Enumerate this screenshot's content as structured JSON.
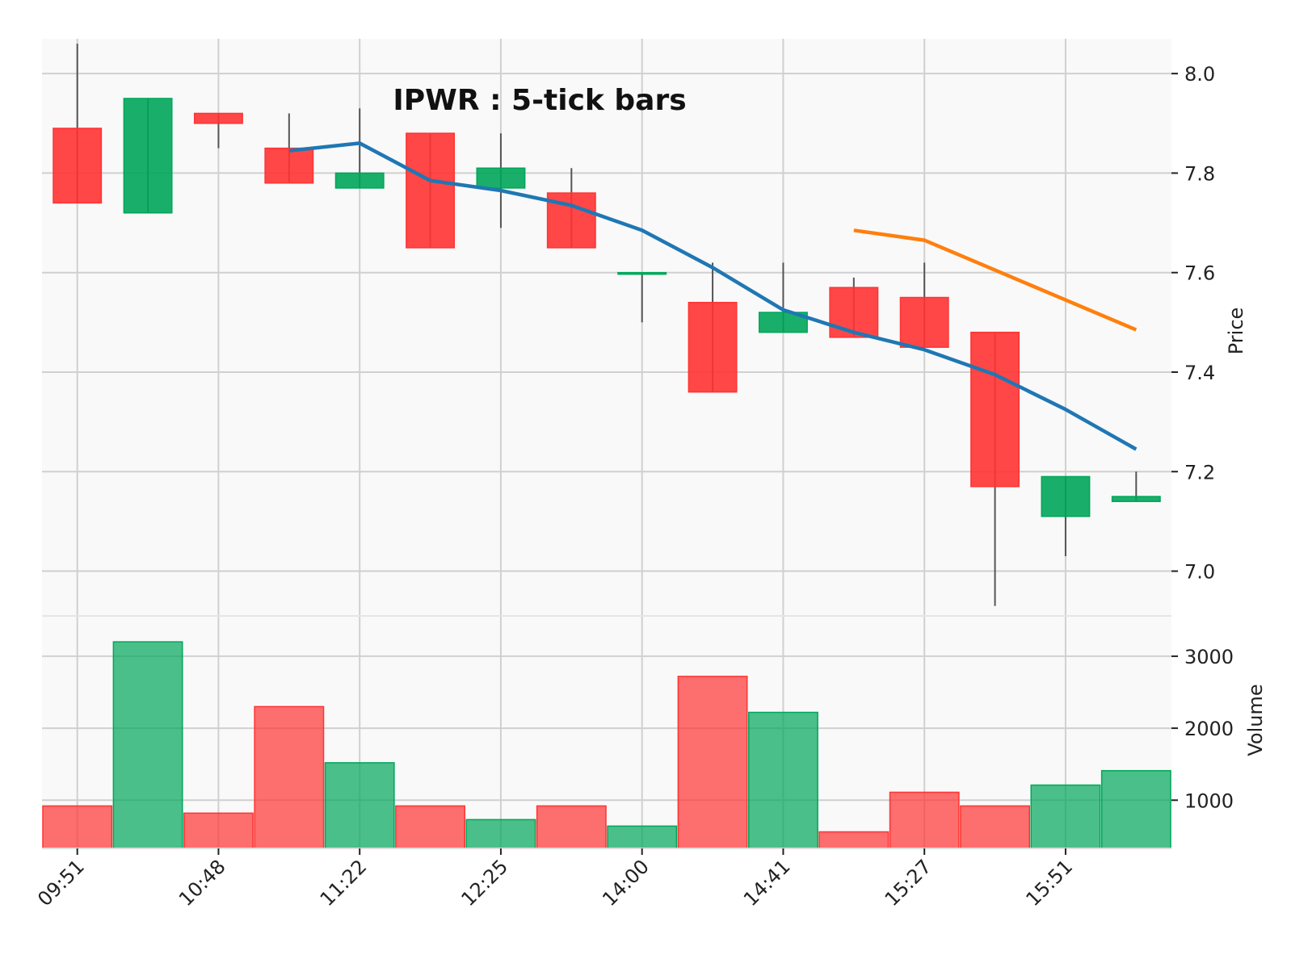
{
  "chart_data": {
    "type": "candlestick",
    "title": "IPWR : 5-tick bars",
    "x_tick_labels": [
      "09:51",
      "10:48",
      "11:22",
      "12:25",
      "14:00",
      "14:41",
      "15:27",
      "15:51"
    ],
    "x_tick_bar_index": [
      0,
      2,
      4,
      6,
      8,
      10,
      12,
      14
    ],
    "price_axis": {
      "label": "Price",
      "ticks": [
        7.0,
        7.2,
        7.4,
        7.6,
        7.8,
        8.0
      ],
      "ylim": [
        6.91,
        8.07
      ],
      "position": "right"
    },
    "volume_axis": {
      "label": "Volume",
      "ticks": [
        1000,
        2000,
        3000
      ],
      "ylim": [
        330,
        3560
      ],
      "position": "right"
    },
    "grid": true,
    "colors": {
      "up": "#00a65a",
      "down": "#ff3333",
      "wick": "#555555",
      "ma_short": "#1f77b4",
      "ma_long": "#ff7f0e",
      "plot_bg": "#f9f9f9",
      "grid": "#d0d0d0"
    },
    "ohlc": [
      {
        "open": 7.89,
        "high": 8.06,
        "low": 7.74,
        "close": 7.74,
        "volume": 920
      },
      {
        "open": 7.72,
        "high": 7.95,
        "low": 7.72,
        "close": 7.95,
        "volume": 3200
      },
      {
        "open": 7.92,
        "high": 7.92,
        "low": 7.85,
        "close": 7.9,
        "volume": 820
      },
      {
        "open": 7.85,
        "high": 7.92,
        "low": 7.78,
        "close": 7.78,
        "volume": 2300
      },
      {
        "open": 7.77,
        "high": 7.93,
        "low": 7.77,
        "close": 7.8,
        "volume": 1520
      },
      {
        "open": 7.88,
        "high": 7.88,
        "low": 7.65,
        "close": 7.65,
        "volume": 920
      },
      {
        "open": 7.77,
        "high": 7.88,
        "low": 7.69,
        "close": 7.81,
        "volume": 730
      },
      {
        "open": 7.76,
        "high": 7.81,
        "low": 7.65,
        "close": 7.65,
        "volume": 920
      },
      {
        "open": 7.6,
        "high": 7.6,
        "low": 7.5,
        "close": 7.6,
        "volume": 640
      },
      {
        "open": 7.54,
        "high": 7.62,
        "low": 7.36,
        "close": 7.36,
        "volume": 2720
      },
      {
        "open": 7.48,
        "high": 7.62,
        "low": 7.48,
        "close": 7.52,
        "volume": 2220
      },
      {
        "open": 7.57,
        "high": 7.59,
        "low": 7.47,
        "close": 7.47,
        "volume": 560
      },
      {
        "open": 7.55,
        "high": 7.62,
        "low": 7.45,
        "close": 7.45,
        "volume": 1110
      },
      {
        "open": 7.48,
        "high": 7.48,
        "low": 6.93,
        "close": 7.17,
        "volume": 920
      },
      {
        "open": 7.11,
        "high": 7.19,
        "low": 7.03,
        "close": 7.19,
        "volume": 1210
      },
      {
        "open": 7.14,
        "high": 7.2,
        "low": 7.14,
        "close": 7.15,
        "volume": 1410
      }
    ],
    "moving_averages": [
      {
        "color": "#1f77b4",
        "start_index": 3,
        "values": [
          7.845,
          7.86,
          7.785,
          7.765,
          7.735,
          7.685,
          7.61,
          7.525,
          7.48,
          7.445,
          7.395,
          7.325,
          7.245
        ]
      },
      {
        "color": "#ff7f0e",
        "start_index": 11,
        "values": [
          7.685,
          7.665,
          7.605,
          7.545,
          7.485
        ]
      }
    ]
  }
}
